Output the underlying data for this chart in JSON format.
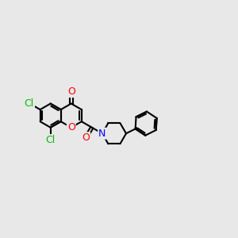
{
  "background_color": "#e8e8e8",
  "bond_color": "#000000",
  "bond_width": 1.5,
  "atom_colors": {
    "O": "#ff0000",
    "N": "#0000ff",
    "Cl": "#00bb00",
    "C": "#000000"
  },
  "font_size": 9,
  "figsize": [
    3.0,
    3.0
  ],
  "dpi": 100
}
